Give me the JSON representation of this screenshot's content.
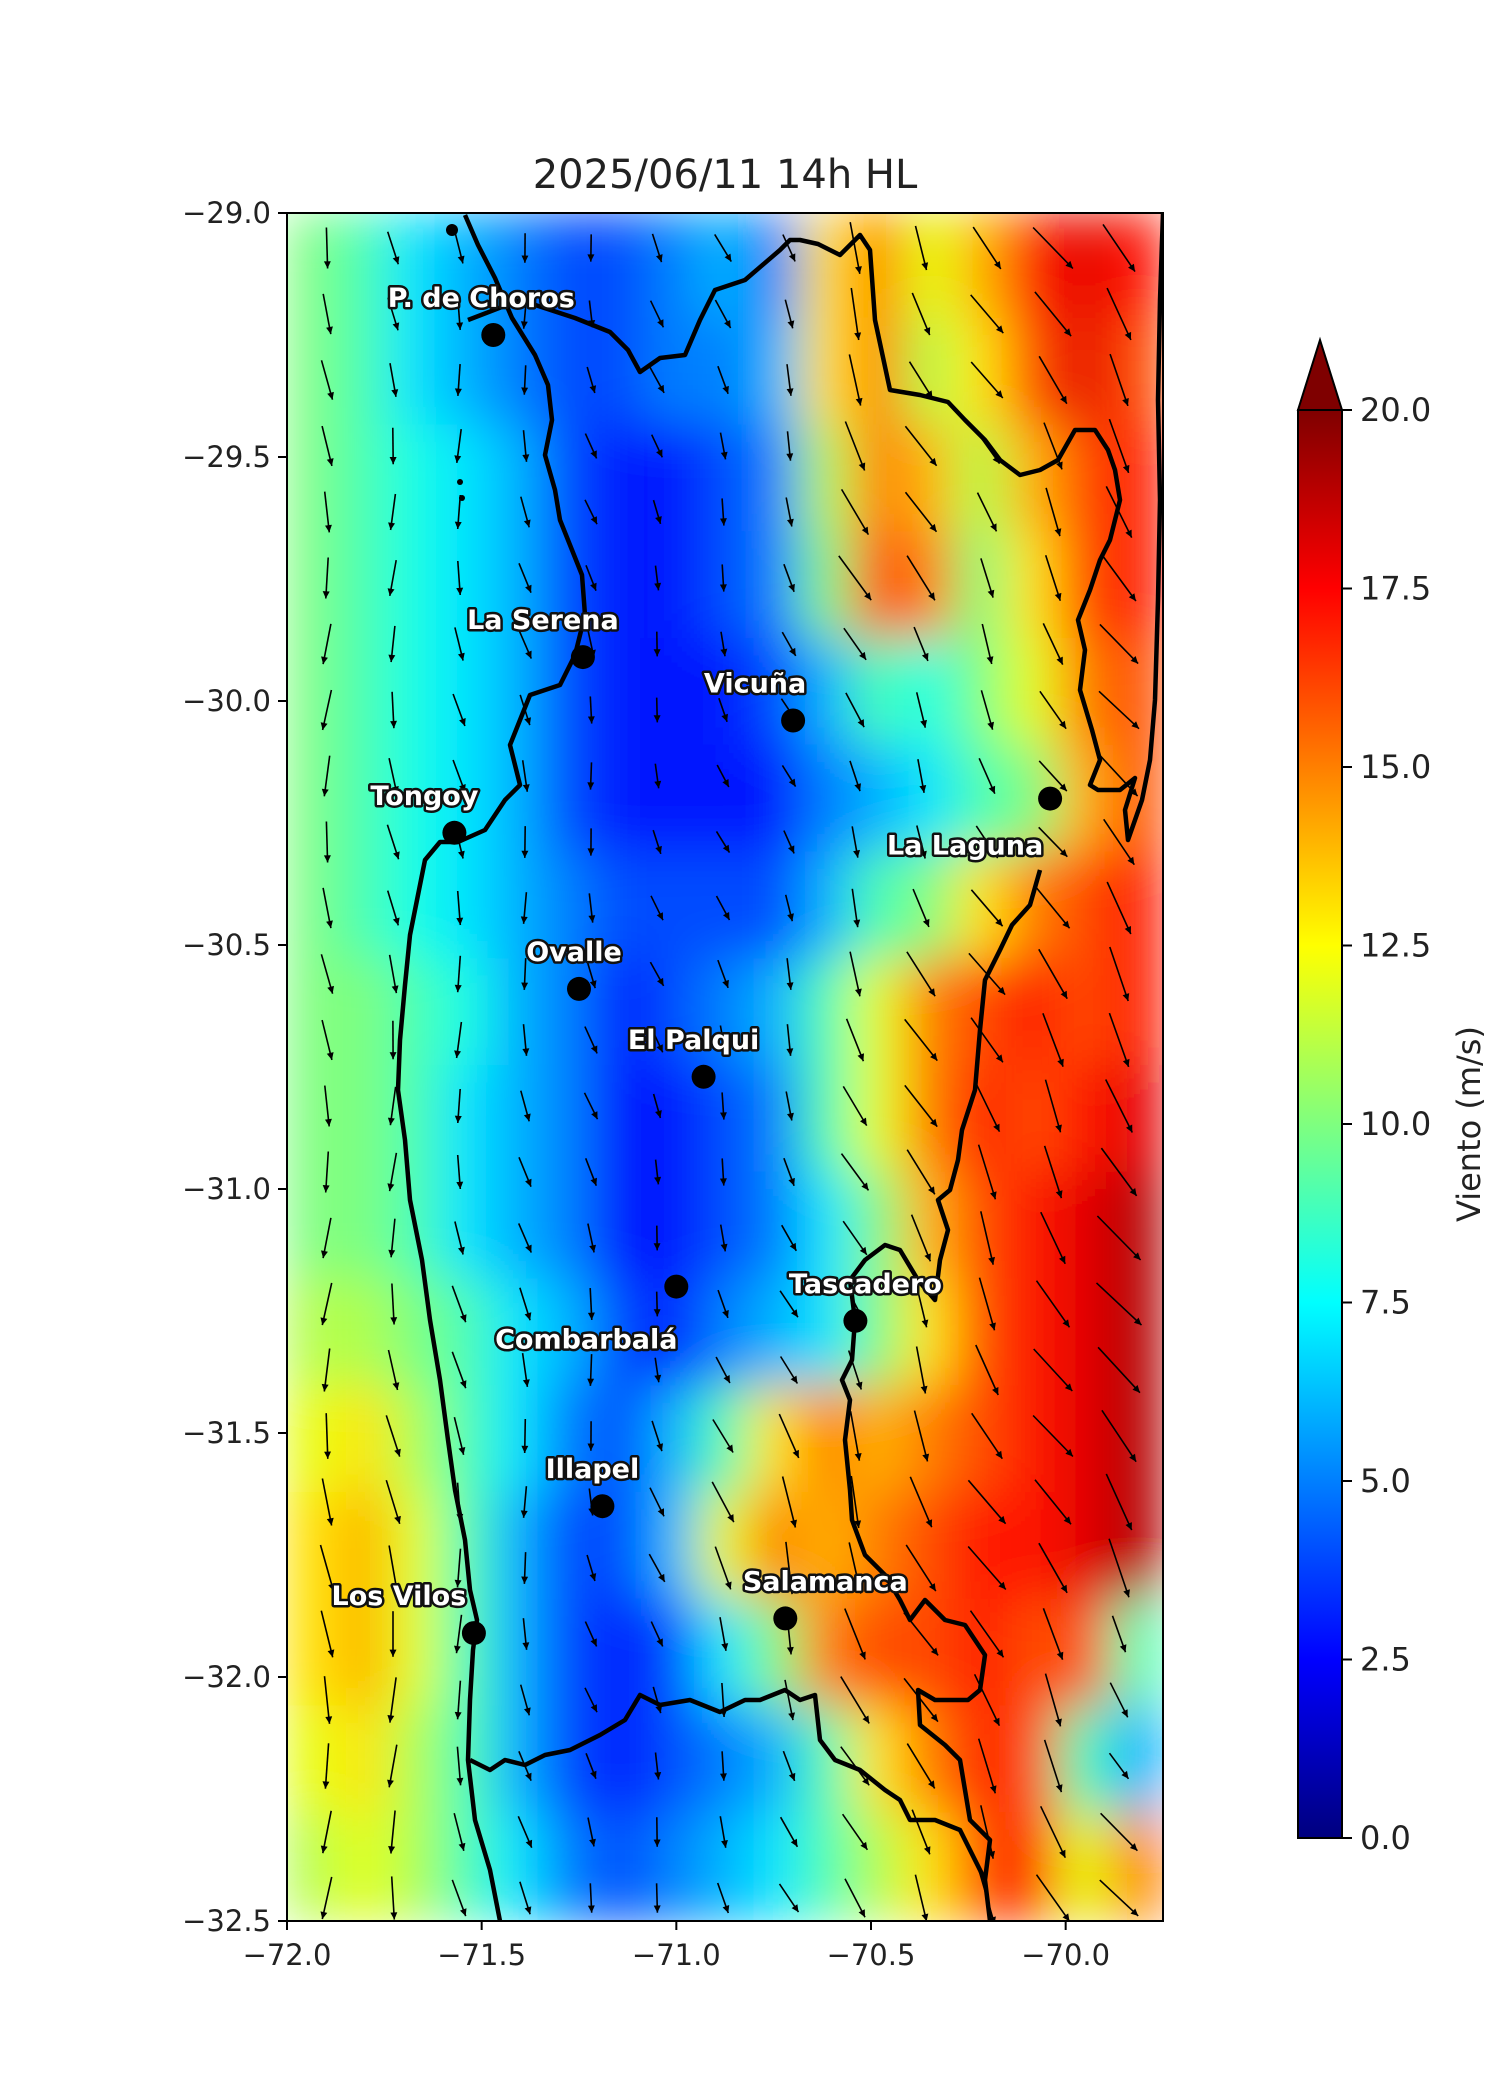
{
  "title": "2025/06/11 14h HL",
  "map": {
    "lon_range": [
      -72.0,
      -69.75
    ],
    "lat_range": [
      -32.5,
      -29.0
    ],
    "x_ticks": [
      {
        "value": -72.0,
        "label": "−72.0"
      },
      {
        "value": -71.5,
        "label": "−71.5"
      },
      {
        "value": -71.0,
        "label": "−71.0"
      },
      {
        "value": -70.5,
        "label": "−70.5"
      },
      {
        "value": -70.0,
        "label": "−70.0"
      }
    ],
    "y_ticks": [
      {
        "value": -29.0,
        "label": "−29.0"
      },
      {
        "value": -29.5,
        "label": "−29.5"
      },
      {
        "value": -30.0,
        "label": "−30.0"
      },
      {
        "value": -30.5,
        "label": "−30.5"
      },
      {
        "value": -31.0,
        "label": "−31.0"
      },
      {
        "value": -31.5,
        "label": "−31.5"
      },
      {
        "value": -32.0,
        "label": "−32.0"
      },
      {
        "value": -32.5,
        "label": "−32.5"
      }
    ]
  },
  "cities": [
    {
      "name": "P. de Choros",
      "lon": -71.47,
      "lat": -29.25
    },
    {
      "name": "La Serena",
      "lon": -71.24,
      "lat": -29.91
    },
    {
      "name": "Vicuña",
      "lon": -70.7,
      "lat": -30.04
    },
    {
      "name": "La Laguna",
      "lon": -70.04,
      "lat": -30.2
    },
    {
      "name": "Tongoy",
      "lon": -71.57,
      "lat": -30.27
    },
    {
      "name": "Ovalle",
      "lon": -71.25,
      "lat": -30.59
    },
    {
      "name": "El Palqui",
      "lon": -70.93,
      "lat": -30.77
    },
    {
      "name": "Combarbalá",
      "lon": -71.0,
      "lat": -31.2
    },
    {
      "name": "Tascadero",
      "lon": -70.54,
      "lat": -31.27
    },
    {
      "name": "Illapel",
      "lon": -71.19,
      "lat": -31.65
    },
    {
      "name": "Los Vilos",
      "lon": -71.52,
      "lat": -31.91
    },
    {
      "name": "Salamanca",
      "lon": -70.72,
      "lat": -31.88
    }
  ],
  "colorbar": {
    "label": "Viento (m/s)",
    "min": 0.0,
    "max": 20.0,
    "extend": "max",
    "ticks": [
      {
        "value": 0.0,
        "label": "0.0"
      },
      {
        "value": 2.5,
        "label": "2.5"
      },
      {
        "value": 5.0,
        "label": "5.0"
      },
      {
        "value": 7.5,
        "label": "7.5"
      },
      {
        "value": 10.0,
        "label": "10.0"
      },
      {
        "value": 12.5,
        "label": "12.5"
      },
      {
        "value": 15.0,
        "label": "15.0"
      },
      {
        "value": 17.5,
        "label": "17.5"
      },
      {
        "value": 20.0,
        "label": "20.0"
      }
    ],
    "colors": [
      "#00007f",
      "#0000ff",
      "#007fff",
      "#00ffff",
      "#7fff7f",
      "#ffff00",
      "#ff7f00",
      "#ff0000",
      "#7f0000"
    ]
  },
  "wind_field": {
    "speed_grid": [
      [
        10,
        9,
        7,
        6,
        5,
        4,
        4,
        5,
        6,
        5,
        13,
        15,
        12,
        14,
        17,
        18,
        17
      ],
      [
        10,
        9,
        7,
        6,
        5,
        4,
        4,
        5,
        5,
        6,
        13,
        15,
        11,
        13,
        16,
        18,
        16
      ],
      [
        10,
        9,
        8,
        7,
        6,
        4,
        3,
        3,
        4,
        5,
        11,
        15,
        14,
        11,
        14,
        16,
        17
      ],
      [
        10,
        9,
        8,
        7,
        6,
        4,
        3,
        3,
        4,
        5,
        10,
        16,
        15,
        10,
        13,
        16,
        17
      ],
      [
        10,
        9,
        8,
        7,
        6,
        4,
        3,
        3,
        3,
        4,
        6,
        9,
        8,
        10,
        12,
        15,
        16
      ],
      [
        10,
        9,
        8,
        7,
        6,
        4,
        3,
        3,
        3,
        3,
        5,
        6,
        7,
        9,
        10,
        14,
        16
      ],
      [
        10,
        9,
        8,
        7,
        6,
        5,
        4,
        4,
        4,
        4,
        6,
        9,
        10,
        13,
        15,
        16,
        17
      ],
      [
        10,
        10,
        9,
        8,
        6,
        5,
        3,
        4,
        5,
        6,
        9,
        12,
        15,
        16,
        17,
        16,
        17
      ],
      [
        10,
        10,
        9,
        7,
        6,
        5,
        3,
        3,
        4,
        5,
        9,
        12,
        15,
        17,
        16,
        17,
        18
      ],
      [
        10,
        10,
        9,
        7,
        6,
        5,
        3,
        3,
        4,
        5,
        7,
        10,
        14,
        16,
        17,
        18,
        19
      ],
      [
        11,
        11,
        10,
        9,
        7,
        6,
        4,
        3,
        5,
        6,
        7,
        10,
        13,
        16,
        17,
        18,
        19
      ],
      [
        12,
        13,
        11,
        9,
        7,
        5,
        4,
        6,
        9,
        13,
        15,
        14,
        15,
        16,
        17,
        18,
        19
      ],
      [
        13,
        14,
        12,
        9,
        6,
        4,
        4,
        6,
        12,
        15,
        14,
        15,
        16,
        17,
        17,
        18,
        19
      ],
      [
        13,
        14,
        12,
        9,
        6,
        4,
        3,
        4,
        7,
        10,
        15,
        16,
        16,
        17,
        16,
        16,
        9
      ],
      [
        12,
        13,
        11,
        9,
        6,
        4,
        3,
        4,
        5,
        6,
        9,
        13,
        15,
        17,
        16,
        9,
        6
      ],
      [
        11,
        12,
        11,
        9,
        7,
        5,
        4,
        5,
        6,
        7,
        9,
        11,
        13,
        16,
        17,
        12,
        15
      ]
    ]
  }
}
